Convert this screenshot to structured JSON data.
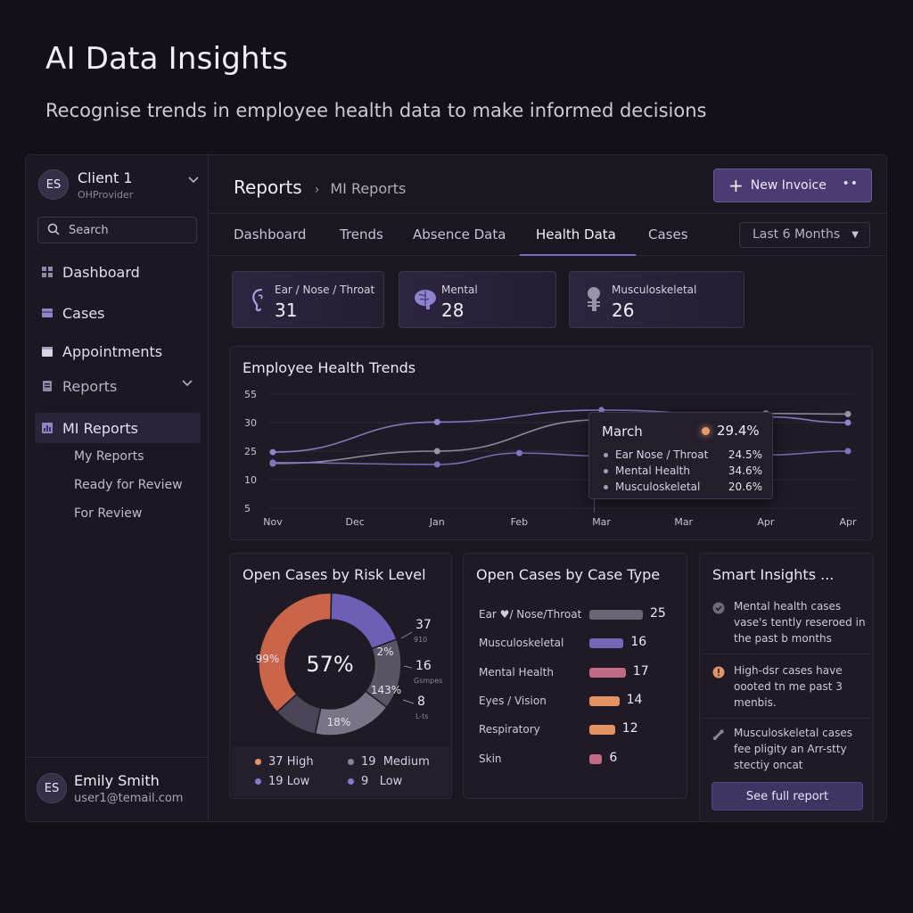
{
  "hero": {
    "title": "AI Data Insights",
    "subtitle": "Recognise trends in employee health data to make informed decisions"
  },
  "sidebar": {
    "client": {
      "initials": "ES",
      "name": "Client 1",
      "role": "OHProvider"
    },
    "search": {
      "placeholder": "Search"
    },
    "nav": [
      {
        "label": "Dashboard"
      },
      {
        "label": "Cases"
      },
      {
        "label": "Appointments"
      },
      {
        "label": "Reports"
      },
      {
        "label": "MI Reports"
      }
    ],
    "subnav": [
      {
        "label": "My Reports"
      },
      {
        "label": "Ready for Review"
      },
      {
        "label": "For Review"
      }
    ],
    "user": {
      "initials": "ES",
      "name": "Emily Smith",
      "email": "user1@temail.com"
    }
  },
  "header": {
    "breadcrumb_root": "Reports",
    "breadcrumb_sep": "›",
    "breadcrumb_current": "MI Reports",
    "new_invoice_label": "New Invoice",
    "new_invoice_more": "••"
  },
  "tabs": {
    "items": [
      {
        "label": "Dashboard"
      },
      {
        "label": "Trends"
      },
      {
        "label": "Absence Data"
      },
      {
        "label": "Health Data"
      },
      {
        "label": "Cases"
      }
    ],
    "active": "Health Data",
    "range": "Last 6 Months"
  },
  "stats": [
    {
      "label": "Ear / Nose / Throat",
      "value": "31",
      "icon": "ear-icon"
    },
    {
      "label": "Mental",
      "value": "28",
      "icon": "brain-icon"
    },
    {
      "label": "Musculoskeletal",
      "value": "26",
      "icon": "skeleton-icon"
    }
  ],
  "trend": {
    "title": "Employee Health Trends",
    "tooltip": {
      "month": "March",
      "main_value": "29.4%",
      "rows": [
        {
          "label": "Ear Nose / Throat",
          "value": "24.5%"
        },
        {
          "label": "Mental Health",
          "value": "34.6%"
        },
        {
          "label": "Musculoskeletal",
          "value": "20.6%"
        }
      ]
    }
  },
  "chart_data": {
    "type": "line",
    "title": "Employee Health Trends",
    "x": [
      "Nov",
      "Dec",
      "Jan",
      "Feb",
      "Mar",
      "Mar",
      "Apr",
      "Apr"
    ],
    "yticks": [
      55,
      30,
      25,
      10,
      5
    ],
    "series": [
      {
        "points": [
          [
            0,
            24.5
          ],
          [
            2,
            30.5
          ],
          [
            4,
            41
          ],
          [
            6,
            35
          ],
          [
            7,
            30
          ]
        ],
        "color": "#8f82cf"
      },
      {
        "points": [
          [
            0,
            18.5
          ],
          [
            2,
            25
          ],
          [
            4,
            32.5
          ],
          [
            6,
            38
          ],
          [
            7,
            37.5
          ]
        ],
        "color": "#9a92a8"
      },
      {
        "points": [
          [
            0,
            19
          ],
          [
            2,
            18
          ],
          [
            3,
            24
          ],
          [
            4,
            22.5
          ],
          [
            6,
            23
          ],
          [
            7,
            25
          ]
        ],
        "color": "#7f74c2"
      }
    ]
  },
  "risk": {
    "title": "Open Cases by Risk Level",
    "center": "57%",
    "slice_labels": [
      {
        "text": "99%"
      },
      {
        "text": "2%"
      },
      {
        "text": "143%"
      },
      {
        "text": "18%"
      }
    ],
    "callouts": [
      {
        "value": "37",
        "sub": "910"
      },
      {
        "value": "16",
        "sub": "Gsmpes"
      },
      {
        "value": "8",
        "sub": "L-ts"
      }
    ],
    "legend": [
      {
        "count": "37",
        "label": "High",
        "color": "#e39466"
      },
      {
        "count": "19",
        "label": "Medium",
        "color": "#8a8398"
      },
      {
        "count": "19",
        "label": "Low",
        "color": "#8577c9"
      },
      {
        "count": "9",
        "label": "Low",
        "color": "#8577c9"
      }
    ],
    "slices": [
      {
        "value": 37,
        "color": "#c9664a"
      },
      {
        "value": 19,
        "color": "#6d5fb6"
      },
      {
        "value": 16,
        "color": "#5a5464"
      },
      {
        "value": 18,
        "color": "#7a7487"
      },
      {
        "value": 10,
        "color": "#4a4556"
      }
    ]
  },
  "case_types": {
    "title": "Open Cases by Case Type",
    "rows": [
      {
        "label": "Ear ♥/ Nose/Throat",
        "value": 25,
        "color": "#6b6676"
      },
      {
        "label": "Musculoskeletal",
        "value": 16,
        "color": "#7667b8"
      },
      {
        "label": "Mental Health",
        "value": 17,
        "color": "#c06a83"
      },
      {
        "label": "Eyes / Vision",
        "value": 14,
        "color": "#e39466"
      },
      {
        "label": "Respiratory",
        "value": 12,
        "color": "#e39466"
      },
      {
        "label": "Skin",
        "value": 6,
        "color": "#c06a83"
      }
    ]
  },
  "insights": {
    "title": "Smart Insights ...",
    "items": [
      {
        "text": "Mental health cases vase's tently reseroed in the past b months",
        "icon": "check-icon"
      },
      {
        "text": "High-dsr cases have oooted tn me past 3 menbis.",
        "icon": "alert-icon"
      },
      {
        "text": "Musculoskeletal cases fee pligity an Arr-stty stectiy oncat",
        "icon": "bone-icon"
      }
    ],
    "button": "See full report"
  }
}
